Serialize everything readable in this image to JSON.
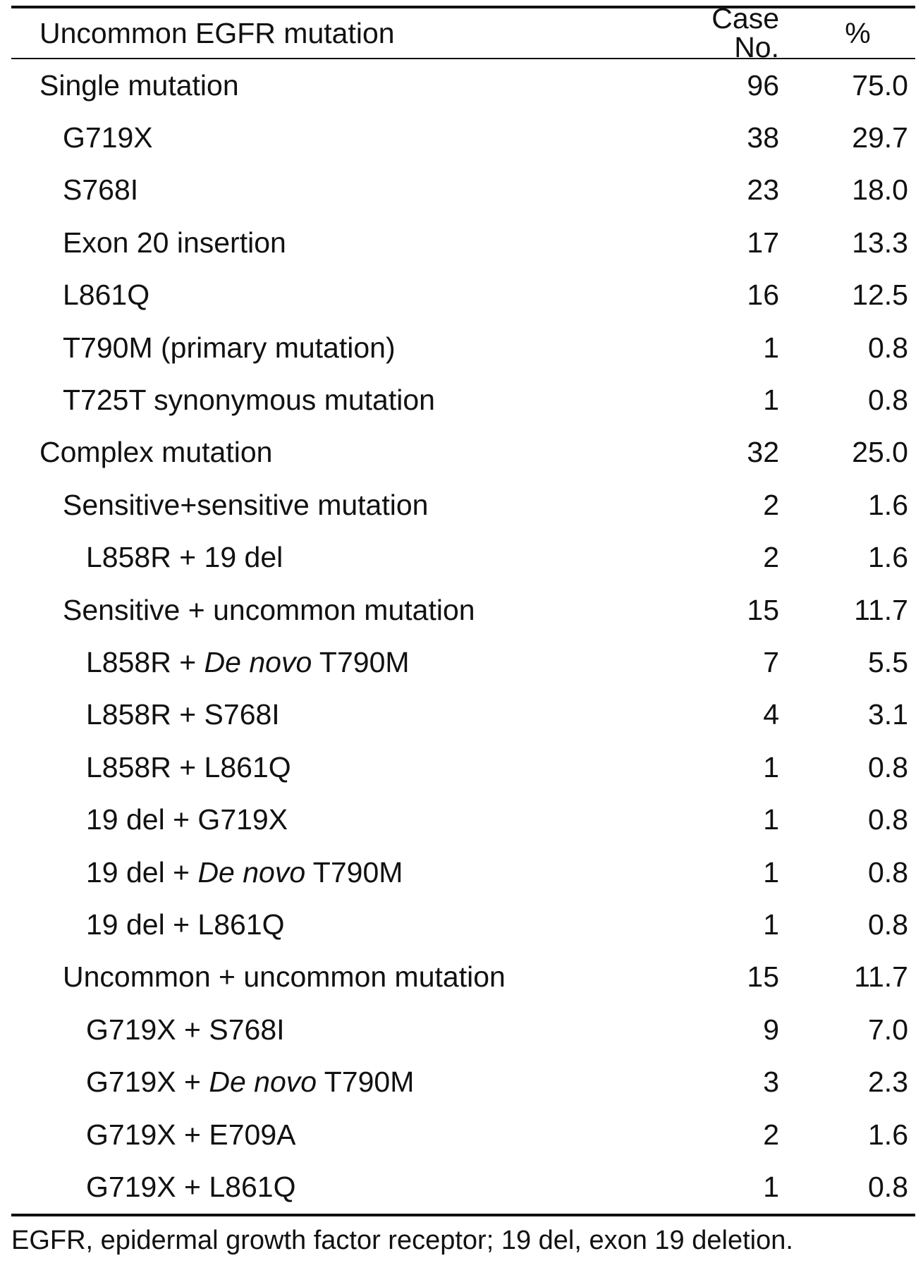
{
  "table": {
    "headers": {
      "label": "Uncommon EGFR mutation",
      "case_no": "Case No.",
      "percent": "%"
    },
    "rows": [
      {
        "level": 0,
        "label_parts": [
          {
            "text": "Single mutation"
          }
        ],
        "case_no": "96",
        "percent": "75.0"
      },
      {
        "level": 1,
        "label_parts": [
          {
            "text": "G719X"
          }
        ],
        "case_no": "38",
        "percent": "29.7"
      },
      {
        "level": 1,
        "label_parts": [
          {
            "text": "S768I"
          }
        ],
        "case_no": "23",
        "percent": "18.0"
      },
      {
        "level": 1,
        "label_parts": [
          {
            "text": "Exon 20 insertion"
          }
        ],
        "case_no": "17",
        "percent": "13.3"
      },
      {
        "level": 1,
        "label_parts": [
          {
            "text": "L861Q"
          }
        ],
        "case_no": "16",
        "percent": "12.5"
      },
      {
        "level": 1,
        "label_parts": [
          {
            "text": "T790M (primary mutation)"
          }
        ],
        "case_no": "1",
        "percent": "0.8"
      },
      {
        "level": 1,
        "label_parts": [
          {
            "text": "T725T synonymous mutation"
          }
        ],
        "case_no": "1",
        "percent": "0.8"
      },
      {
        "level": 0,
        "label_parts": [
          {
            "text": "Complex mutation"
          }
        ],
        "case_no": "32",
        "percent": "25.0"
      },
      {
        "level": 1,
        "label_parts": [
          {
            "text": "Sensitive+sensitive mutation"
          }
        ],
        "case_no": "2",
        "percent": "1.6"
      },
      {
        "level": 2,
        "label_parts": [
          {
            "text": "L858R + 19 del"
          }
        ],
        "case_no": "2",
        "percent": "1.6"
      },
      {
        "level": 1,
        "label_parts": [
          {
            "text": "Sensitive + uncommon mutation"
          }
        ],
        "case_no": "15",
        "percent": "11.7"
      },
      {
        "level": 2,
        "label_parts": [
          {
            "text": "L858R + "
          },
          {
            "text": "De novo",
            "italic": true
          },
          {
            "text": " T790M"
          }
        ],
        "case_no": "7",
        "percent": "5.5"
      },
      {
        "level": 2,
        "label_parts": [
          {
            "text": "L858R + S768I"
          }
        ],
        "case_no": "4",
        "percent": "3.1"
      },
      {
        "level": 2,
        "label_parts": [
          {
            "text": "L858R + L861Q"
          }
        ],
        "case_no": "1",
        "percent": "0.8"
      },
      {
        "level": 2,
        "label_parts": [
          {
            "text": "19 del + G719X"
          }
        ],
        "case_no": "1",
        "percent": "0.8"
      },
      {
        "level": 2,
        "label_parts": [
          {
            "text": "19 del + "
          },
          {
            "text": "De novo",
            "italic": true
          },
          {
            "text": " T790M"
          }
        ],
        "case_no": "1",
        "percent": "0.8"
      },
      {
        "level": 2,
        "label_parts": [
          {
            "text": "19 del + L861Q"
          }
        ],
        "case_no": "1",
        "percent": "0.8"
      },
      {
        "level": 1,
        "label_parts": [
          {
            "text": "Uncommon + uncommon mutation"
          }
        ],
        "case_no": "15",
        "percent": "11.7"
      },
      {
        "level": 2,
        "label_parts": [
          {
            "text": "G719X + S768I"
          }
        ],
        "case_no": "9",
        "percent": "7.0"
      },
      {
        "level": 2,
        "label_parts": [
          {
            "text": "G719X + "
          },
          {
            "text": "De novo",
            "italic": true
          },
          {
            "text": " T790M"
          }
        ],
        "case_no": "3",
        "percent": "2.3"
      },
      {
        "level": 2,
        "label_parts": [
          {
            "text": "G719X + E709A"
          }
        ],
        "case_no": "2",
        "percent": "1.6"
      },
      {
        "level": 2,
        "label_parts": [
          {
            "text": "G719X + L861Q"
          }
        ],
        "case_no": "1",
        "percent": "0.8"
      }
    ]
  },
  "footnote": "EGFR, epidermal growth factor receptor; 19 del, exon 19 deletion."
}
